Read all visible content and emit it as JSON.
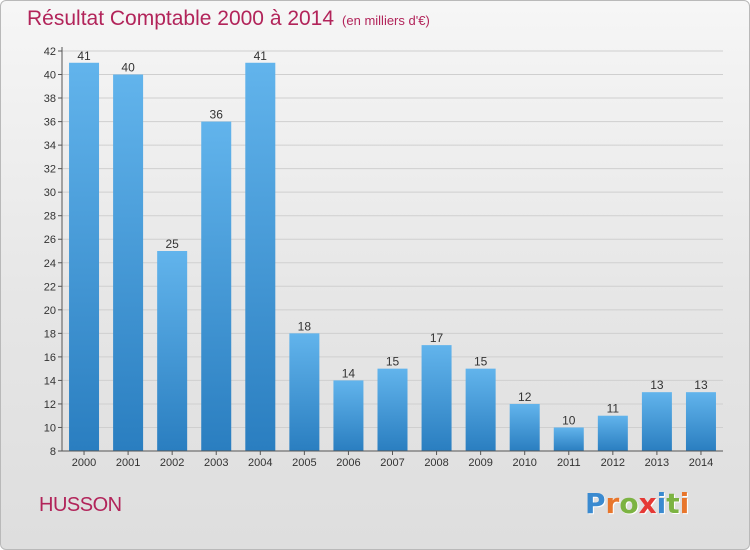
{
  "header": {
    "title": "Résultat Comptable 2000 à 2014",
    "subtitle": "(en milliers d'€)"
  },
  "commune_label": "HUSSON",
  "logo": {
    "text": "Proxiti",
    "letters": [
      {
        "char": "P",
        "color": "#3a8ad0"
      },
      {
        "char": "r",
        "color": "#e8762c"
      },
      {
        "char": "o",
        "color": "#7cb342"
      },
      {
        "char": "x",
        "color": "#e53935"
      },
      {
        "char": "i",
        "color": "#3a8ad0"
      },
      {
        "char": "t",
        "color": "#7cb342"
      },
      {
        "char": "i",
        "color": "#e8762c"
      }
    ]
  },
  "colors": {
    "bar_light": "#62b4ec",
    "bar_dark": "#2a7ec0",
    "text": "#333333",
    "accent": "#b2245a"
  },
  "chart_data": {
    "type": "bar",
    "title": "Résultat Comptable 2000 à 2014",
    "subtitle": "(en milliers d'€)",
    "categories": [
      "2000",
      "2001",
      "2002",
      "2003",
      "2004",
      "2005",
      "2006",
      "2007",
      "2008",
      "2009",
      "2010",
      "2011",
      "2012",
      "2013",
      "2014"
    ],
    "values": [
      41,
      40,
      25,
      36,
      41,
      18,
      14,
      15,
      17,
      15,
      12,
      10,
      11,
      13,
      13
    ],
    "data_labels": [
      "41",
      "40",
      "25",
      "36",
      "41",
      "18",
      "14",
      "15",
      "17",
      "15",
      "12",
      "10",
      "11",
      "13",
      "13"
    ],
    "ylim": [
      8,
      42
    ],
    "yticks": [
      8,
      10,
      12,
      14,
      16,
      18,
      20,
      22,
      24,
      26,
      28,
      30,
      32,
      34,
      36,
      38,
      40,
      42
    ],
    "grid": true
  }
}
